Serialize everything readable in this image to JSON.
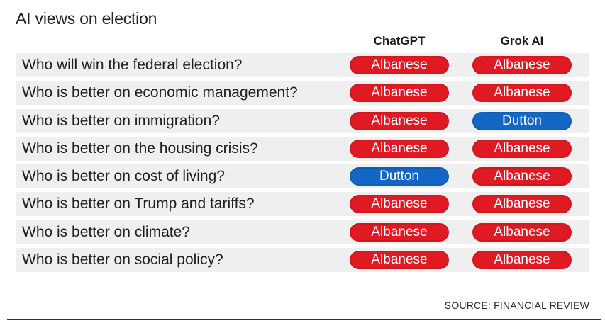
{
  "title": "AI views on election",
  "source": "SOURCE: FINANCIAL REVIEW",
  "colors": {
    "Albanese": "#e01a22",
    "Dutton": "#1366c4"
  },
  "chart_data": {
    "type": "table",
    "columns": [
      "ChatGPT",
      "Grok AI"
    ],
    "rows": [
      {
        "question": "Who will win the federal election?",
        "values": [
          "Albanese",
          "Albanese"
        ]
      },
      {
        "question": "Who is better on economic management?",
        "values": [
          "Albanese",
          "Albanese"
        ]
      },
      {
        "question": "Who is better on immigration?",
        "values": [
          "Albanese",
          "Dutton"
        ]
      },
      {
        "question": "Who is better on the housing crisis?",
        "values": [
          "Albanese",
          "Albanese"
        ]
      },
      {
        "question": "Who is better on cost of living?",
        "values": [
          "Dutton",
          "Albanese"
        ]
      },
      {
        "question": "Who is better on Trump and tariffs?",
        "values": [
          "Albanese",
          "Albanese"
        ]
      },
      {
        "question": "Who is better on climate?",
        "values": [
          "Albanese",
          "Albanese"
        ]
      },
      {
        "question": "Who is better on social policy?",
        "values": [
          "Albanese",
          "Albanese"
        ]
      }
    ]
  }
}
